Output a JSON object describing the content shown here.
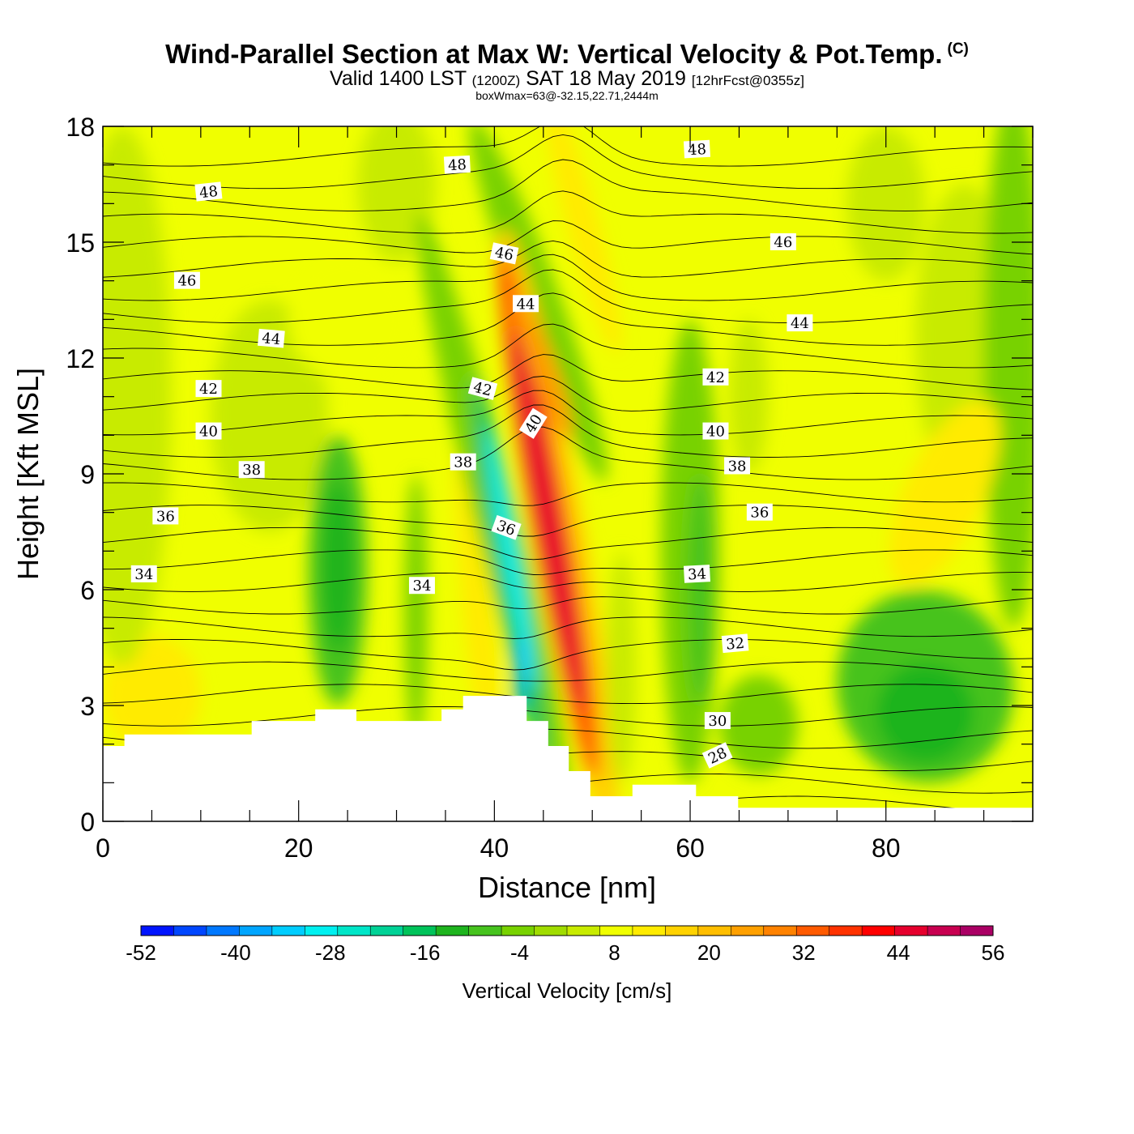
{
  "title": "Wind-Parallel Section at Max W: Vertical Velocity & Pot.Temp.",
  "copyright": "(C)",
  "subtitle": {
    "valid": "Valid 1400 LST",
    "utc": "(1200Z)",
    "date": "SAT 18 May 2019",
    "forecast": "[12hrFcst@0355z]"
  },
  "subtitle2": "boxWmax=63@-32.15,22.71,2444m",
  "chart_data": {
    "type": "heatmap",
    "xlabel": "Distance [nm]",
    "ylabel": "Height [Kft MSL]",
    "xlim": [
      0,
      95
    ],
    "ylim": [
      0,
      18
    ],
    "xticks": [
      "0",
      "20",
      "40",
      "60",
      "80"
    ],
    "xtick_values": [
      0,
      20,
      40,
      60,
      80
    ],
    "yticks": [
      "0",
      "3",
      "6",
      "9",
      "12",
      "15",
      "18"
    ],
    "ytick_values": [
      0,
      3,
      6,
      9,
      12,
      15,
      18
    ],
    "colorbar": {
      "label": "Vertical Velocity [cm/s]",
      "min": -52,
      "max": 56,
      "step": 4,
      "tick_labels": [
        "-52",
        "-40",
        "-28",
        "-16",
        "-4",
        "8",
        "20",
        "32",
        "44",
        "56"
      ],
      "colors": [
        "#0014ff",
        "#0046ff",
        "#0078ff",
        "#00a5ff",
        "#00cdff",
        "#00f0f0",
        "#00e6c8",
        "#00d296",
        "#00c35a",
        "#1eb41e",
        "#46c31e",
        "#78d200",
        "#a0dc00",
        "#c8eb00",
        "#f0ff00",
        "#ffeb00",
        "#ffd200",
        "#ffbe00",
        "#ffa000",
        "#ff8200",
        "#ff5a00",
        "#ff3200",
        "#ff0000",
        "#e6002d",
        "#c80050",
        "#aa0064"
      ]
    },
    "contour_labels": [
      {
        "text": "48",
        "x": 10.8,
        "y": 16.3,
        "angle": -6
      },
      {
        "text": "48",
        "x": 36.2,
        "y": 17.0,
        "angle": -3
      },
      {
        "text": "48",
        "x": 60.7,
        "y": 17.4,
        "angle": -3
      },
      {
        "text": "46",
        "x": 8.6,
        "y": 14.0,
        "angle": 0
      },
      {
        "text": "46",
        "x": 41.0,
        "y": 14.7,
        "angle": 12
      },
      {
        "text": "46",
        "x": 69.5,
        "y": 15.0,
        "angle": 0
      },
      {
        "text": "44",
        "x": 17.2,
        "y": 12.5,
        "angle": 5
      },
      {
        "text": "44",
        "x": 43.2,
        "y": 13.4,
        "angle": 0
      },
      {
        "text": "44",
        "x": 71.2,
        "y": 12.9,
        "angle": 0
      },
      {
        "text": "42",
        "x": 10.8,
        "y": 11.2,
        "angle": 0
      },
      {
        "text": "42",
        "x": 38.8,
        "y": 11.2,
        "angle": 15
      },
      {
        "text": "42",
        "x": 62.6,
        "y": 11.5,
        "angle": 0
      },
      {
        "text": "40",
        "x": 10.8,
        "y": 10.1,
        "angle": 0
      },
      {
        "text": "40",
        "x": 44.0,
        "y": 10.3,
        "angle": -58
      },
      {
        "text": "40",
        "x": 62.6,
        "y": 10.1,
        "angle": 0
      },
      {
        "text": "38",
        "x": 15.2,
        "y": 9.1,
        "angle": 0
      },
      {
        "text": "38",
        "x": 36.8,
        "y": 9.3,
        "angle": 0
      },
      {
        "text": "38",
        "x": 64.8,
        "y": 9.2,
        "angle": 0
      },
      {
        "text": "36",
        "x": 6.4,
        "y": 7.9,
        "angle": 0
      },
      {
        "text": "36",
        "x": 41.2,
        "y": 7.6,
        "angle": 20
      },
      {
        "text": "36",
        "x": 67.1,
        "y": 8.0,
        "angle": 0
      },
      {
        "text": "34",
        "x": 4.2,
        "y": 6.4,
        "angle": 0
      },
      {
        "text": "34",
        "x": 32.6,
        "y": 6.1,
        "angle": 0
      },
      {
        "text": "34",
        "x": 60.7,
        "y": 6.4,
        "angle": -3
      },
      {
        "text": "32",
        "x": 64.6,
        "y": 4.6,
        "angle": -5
      },
      {
        "text": "30",
        "x": 62.8,
        "y": 2.6,
        "angle": 0
      },
      {
        "text": "28",
        "x": 62.8,
        "y": 1.7,
        "angle": -25
      }
    ],
    "terrain_profile": [
      [
        0,
        1.95
      ],
      [
        2.2,
        1.95
      ],
      [
        2.2,
        2.25
      ],
      [
        15.2,
        2.25
      ],
      [
        15.2,
        2.6
      ],
      [
        21.7,
        2.6
      ],
      [
        21.7,
        2.9
      ],
      [
        25.9,
        2.9
      ],
      [
        25.9,
        2.6
      ],
      [
        34.6,
        2.6
      ],
      [
        34.6,
        2.9
      ],
      [
        36.8,
        2.9
      ],
      [
        36.8,
        3.25
      ],
      [
        43.3,
        3.25
      ],
      [
        43.3,
        2.6
      ],
      [
        45.5,
        2.6
      ],
      [
        45.5,
        1.95
      ],
      [
        47.6,
        1.95
      ],
      [
        47.6,
        1.3
      ],
      [
        49.8,
        1.3
      ],
      [
        49.8,
        0.65
      ],
      [
        54.1,
        0.65
      ],
      [
        54.1,
        0.95
      ],
      [
        60.6,
        0.95
      ],
      [
        60.6,
        0.65
      ],
      [
        64.9,
        0.65
      ],
      [
        64.9,
        0.35
      ],
      [
        95,
        0.35
      ]
    ],
    "wmax_location_xy": [
      45.5,
      7.6
    ],
    "wmax_value": 63
  }
}
